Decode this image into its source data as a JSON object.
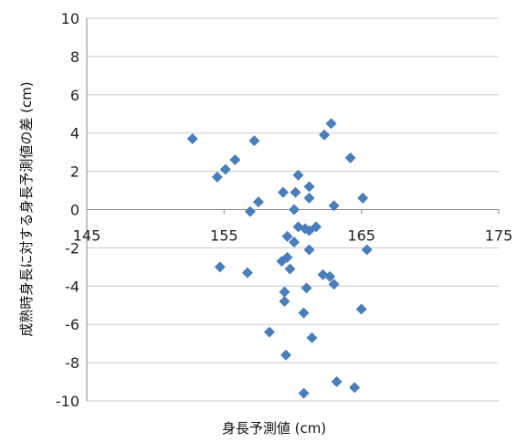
{
  "chart_data": {
    "type": "scatter",
    "title": "",
    "xlabel": "身長予測値 (cm)",
    "ylabel": "成熟時身長に対する身長予測値の差 (cm)",
    "xlim": [
      145,
      175
    ],
    "ylim": [
      -10,
      10
    ],
    "x_ticks": [
      "145",
      "155",
      "165",
      "175"
    ],
    "y_ticks": [
      "-10",
      "-8",
      "-6",
      "-4",
      "-2",
      "0",
      "2",
      "4",
      "6",
      "8",
      "10"
    ],
    "grid": "horizontal",
    "legend": "none",
    "marker": "diamond",
    "colors": {
      "marker": "#4a7ebb",
      "grid": "#c8c8c8",
      "axis": "#8a8a8a"
    },
    "points": [
      {
        "x": 152.7,
        "y": 3.7
      },
      {
        "x": 154.5,
        "y": 1.7
      },
      {
        "x": 155.1,
        "y": 2.1
      },
      {
        "x": 155.8,
        "y": 2.6
      },
      {
        "x": 157.2,
        "y": 3.6
      },
      {
        "x": 157.5,
        "y": 0.4
      },
      {
        "x": 156.9,
        "y": -0.1
      },
      {
        "x": 154.7,
        "y": -3.0
      },
      {
        "x": 156.7,
        "y": -3.3
      },
      {
        "x": 159.3,
        "y": 0.9
      },
      {
        "x": 159.6,
        "y": -1.4
      },
      {
        "x": 160.1,
        "y": 0.0
      },
      {
        "x": 160.2,
        "y": 0.9
      },
      {
        "x": 160.4,
        "y": 1.8
      },
      {
        "x": 161.2,
        "y": 1.2
      },
      {
        "x": 161.2,
        "y": 0.6
      },
      {
        "x": 160.4,
        "y": -0.9
      },
      {
        "x": 160.9,
        "y": -1.0
      },
      {
        "x": 161.2,
        "y": -1.1
      },
      {
        "x": 161.7,
        "y": -0.9
      },
      {
        "x": 160.1,
        "y": -1.7
      },
      {
        "x": 161.2,
        "y": -2.1
      },
      {
        "x": 159.6,
        "y": -2.5
      },
      {
        "x": 159.2,
        "y": -2.7
      },
      {
        "x": 159.8,
        "y": -3.1
      },
      {
        "x": 159.4,
        "y": -4.3
      },
      {
        "x": 159.4,
        "y": -4.8
      },
      {
        "x": 161.0,
        "y": -4.1
      },
      {
        "x": 160.8,
        "y": -5.4
      },
      {
        "x": 161.4,
        "y": -6.7
      },
      {
        "x": 158.3,
        "y": -6.4
      },
      {
        "x": 159.5,
        "y": -7.6
      },
      {
        "x": 160.8,
        "y": -9.6
      },
      {
        "x": 162.3,
        "y": 3.9
      },
      {
        "x": 162.8,
        "y": 4.5
      },
      {
        "x": 164.2,
        "y": 2.7
      },
      {
        "x": 163.0,
        "y": 0.2
      },
      {
        "x": 165.1,
        "y": 0.6
      },
      {
        "x": 162.2,
        "y": -3.4
      },
      {
        "x": 162.7,
        "y": -3.5
      },
      {
        "x": 163.0,
        "y": -3.9
      },
      {
        "x": 165.0,
        "y": -5.2
      },
      {
        "x": 165.4,
        "y": -2.1
      },
      {
        "x": 163.2,
        "y": -9.0
      },
      {
        "x": 164.5,
        "y": -9.3
      }
    ]
  }
}
